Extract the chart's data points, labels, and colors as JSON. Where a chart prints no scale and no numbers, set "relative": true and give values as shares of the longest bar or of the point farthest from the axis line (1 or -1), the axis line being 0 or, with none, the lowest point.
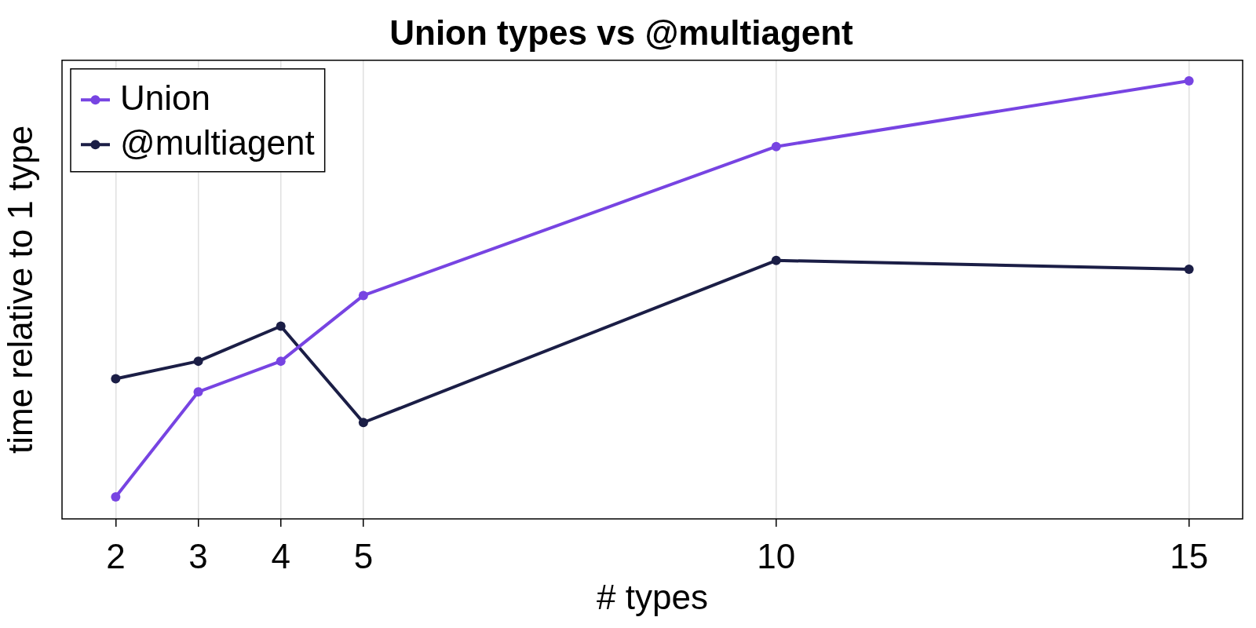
{
  "chart_data": {
    "type": "line",
    "title": "Union types vs @multiagent",
    "xlabel": "# types",
    "ylabel": "time relative to 1 type",
    "x": [
      2,
      3,
      4,
      5,
      10,
      15
    ],
    "xlim": [
      1.35,
      15.65
    ],
    "xticks": [
      2,
      3,
      4,
      5,
      10,
      15
    ],
    "relative": true,
    "grid": "x",
    "legend": "top left",
    "marker": "circle",
    "line_style": "solid",
    "series": [
      {
        "name": "Union",
        "color": "#7744e2",
        "values": [
          0.05,
          0.29,
          0.36,
          0.51,
          0.85,
          1
        ]
      },
      {
        "name": "@multiagent",
        "color": "#1b1e46",
        "values": [
          0.32,
          0.36,
          0.44,
          0.22,
          0.59,
          0.57
        ]
      }
    ]
  }
}
